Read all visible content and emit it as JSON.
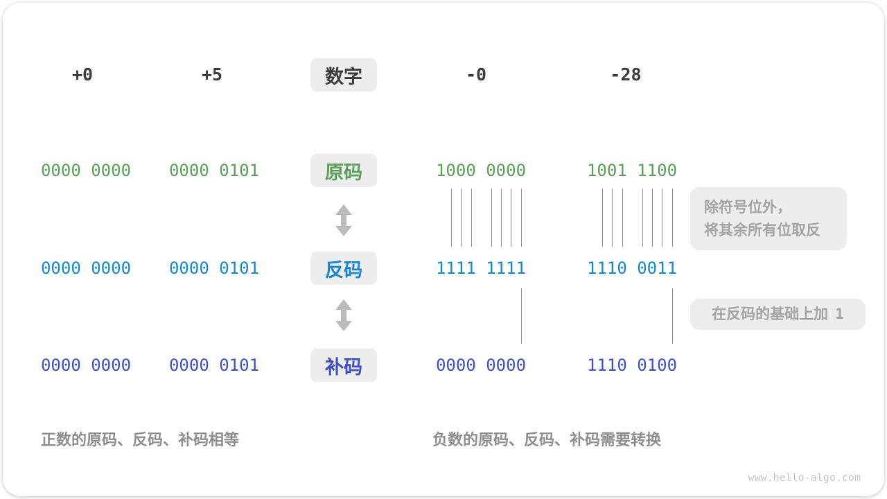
{
  "headers": [
    {
      "label": "+0"
    },
    {
      "label": "+5"
    },
    {
      "label": "数字"
    },
    {
      "label": "-0"
    },
    {
      "label": "-28"
    }
  ],
  "rows": [
    {
      "label": "原码",
      "values": [
        "0000 0000",
        "0000 0101",
        "1000 0000",
        "1001 1100"
      ]
    },
    {
      "label": "反码",
      "values": [
        "0000 0000",
        "0000 0101",
        "1111 1111",
        "1110 0011"
      ]
    },
    {
      "label": "补码",
      "values": [
        "0000 0000",
        "0000 0101",
        "0000 0000",
        "1110 0100"
      ]
    }
  ],
  "annotations": {
    "flip_line1": "除符号位外，",
    "flip_line2": "将其余所有位取反",
    "add_one_text": "在反码的基础上加",
    "add_one_number": "1"
  },
  "summaries": {
    "positive": "正数的原码、反码、补码相等",
    "negative": "负数的原码、反码、补码需要转换"
  },
  "watermark": "www.hello-algo.com",
  "colors": {
    "sign_magnitude_green": "#5a9e5a",
    "ones_complement_blue": "#1986cc",
    "twos_complement_navy": "#3f4fc1",
    "header_dark": "#3b3b3b",
    "note_gray": "#a3a3a3",
    "summary_gray": "#8e8e8e",
    "box_background": "#ededed"
  }
}
